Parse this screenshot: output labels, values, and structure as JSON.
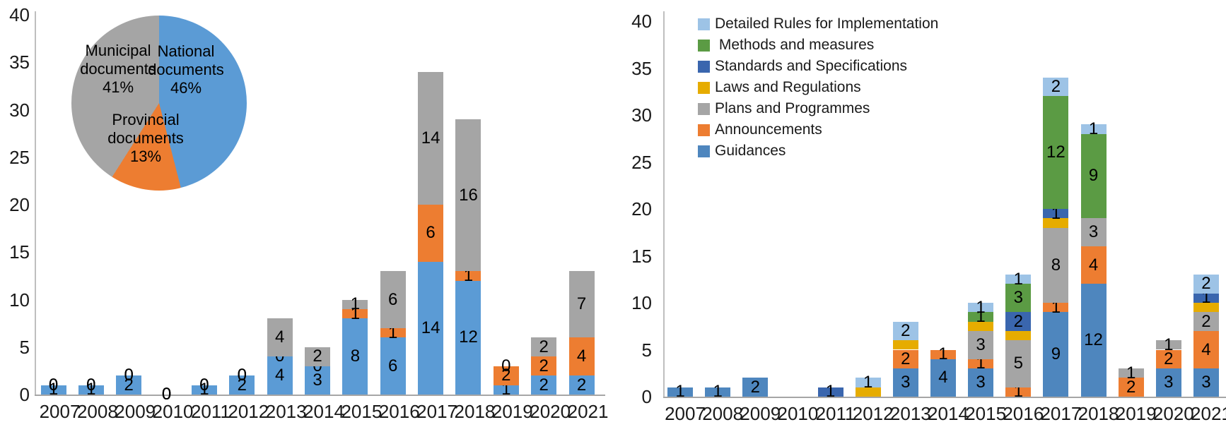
{
  "figure": {
    "background": "#ffffff",
    "text_color": "#1a1a1a",
    "baseline_color": "#a6a6a6",
    "y_axis_line_color": "#bfbfbf"
  },
  "chart_data": [
    {
      "type": "bar",
      "stacked": true,
      "title": "",
      "xlabel": "",
      "ylabel": "",
      "categories": [
        "2007",
        "2008",
        "2009",
        "2010",
        "2011",
        "2012",
        "2013",
        "2014",
        "2015",
        "2016",
        "2017",
        "2018",
        "2019",
        "2020",
        "2021"
      ],
      "ylim": [
        0,
        40
      ],
      "yticks": [
        0,
        5,
        10,
        15,
        20,
        25,
        30,
        35,
        40
      ],
      "grid": false,
      "show_zero_labels": true,
      "series": [
        {
          "name": "National documents",
          "color": "#5B9BD5",
          "values": [
            1,
            1,
            2,
            0,
            1,
            2,
            4,
            3,
            8,
            6,
            14,
            12,
            1,
            2,
            2
          ]
        },
        {
          "name": "Provincial documents",
          "color": "#ED7D31",
          "values": [
            0,
            0,
            0,
            0,
            0,
            0,
            0,
            0,
            1,
            1,
            6,
            1,
            2,
            2,
            4
          ]
        },
        {
          "name": "Municipal documents",
          "color": "#A5A5A5",
          "values": [
            0,
            0,
            0,
            0,
            0,
            0,
            4,
            2,
            1,
            6,
            14,
            16,
            0,
            2,
            7
          ]
        }
      ],
      "pie_inset": {
        "type": "pie",
        "start_angle_deg": 0,
        "clockwise": true,
        "slices": [
          {
            "label": "National documents",
            "pct": 46,
            "color": "#5B9BD5",
            "text": "National\ndocuments\n46%"
          },
          {
            "label": "Provincial documents",
            "pct": 13,
            "color": "#ED7D31",
            "text": "Provincial\ndocuments\n13%"
          },
          {
            "label": "Municipal documents",
            "pct": 41,
            "color": "#A5A5A5",
            "text": "Municipal\ndocuments\n41%"
          }
        ]
      }
    },
    {
      "type": "bar",
      "stacked": true,
      "title": "",
      "xlabel": "",
      "ylabel": "",
      "categories": [
        "2007",
        "2008",
        "2009",
        "2010",
        "2011",
        "2012",
        "2013",
        "2014",
        "2015",
        "2016",
        "2017",
        "2018",
        "2019",
        "2020",
        "2021"
      ],
      "ylim": [
        0,
        40
      ],
      "yticks": [
        0,
        5,
        10,
        15,
        20,
        25,
        30,
        35,
        40
      ],
      "grid": false,
      "show_zero_labels": false,
      "legend_position": "top-left",
      "series": [
        {
          "name": "Guidances",
          "color": "#4E86BE",
          "values": [
            1,
            1,
            2,
            0,
            0,
            0,
            3,
            4,
            3,
            0,
            9,
            12,
            0,
            3,
            3
          ]
        },
        {
          "name": "Announcements",
          "color": "#ED7D31",
          "values": [
            0,
            0,
            0,
            0,
            0,
            0,
            2,
            1,
            1,
            1,
            1,
            4,
            2,
            2,
            4
          ]
        },
        {
          "name": "Plans and Programmes",
          "color": "#A5A5A5",
          "values": [
            0,
            0,
            0,
            0,
            0,
            0,
            0,
            0,
            3,
            5,
            8,
            3,
            1,
            1,
            2
          ]
        },
        {
          "name": "Laws and Regulations",
          "color": "#E6AC00",
          "values": [
            0,
            0,
            0,
            0,
            0,
            1,
            1,
            0,
            1,
            1,
            1,
            0,
            0,
            0,
            1
          ],
          "labels_hidden": true
        },
        {
          "name": "Standards and Specifications",
          "color": "#3A66AE",
          "values": [
            0,
            0,
            0,
            0,
            1,
            0,
            0,
            0,
            0,
            2,
            1,
            0,
            0,
            0,
            1
          ]
        },
        {
          "name": " Methods and measures",
          "color": "#5B9B44",
          "values": [
            0,
            0,
            0,
            0,
            0,
            0,
            0,
            0,
            1,
            3,
            12,
            9,
            0,
            0,
            0
          ]
        },
        {
          "name": "Detailed Rules for Implementation",
          "color": "#9DC3E6",
          "values": [
            0,
            0,
            0,
            0,
            0,
            1,
            2,
            0,
            1,
            1,
            2,
            1,
            0,
            0,
            2
          ]
        }
      ]
    }
  ]
}
